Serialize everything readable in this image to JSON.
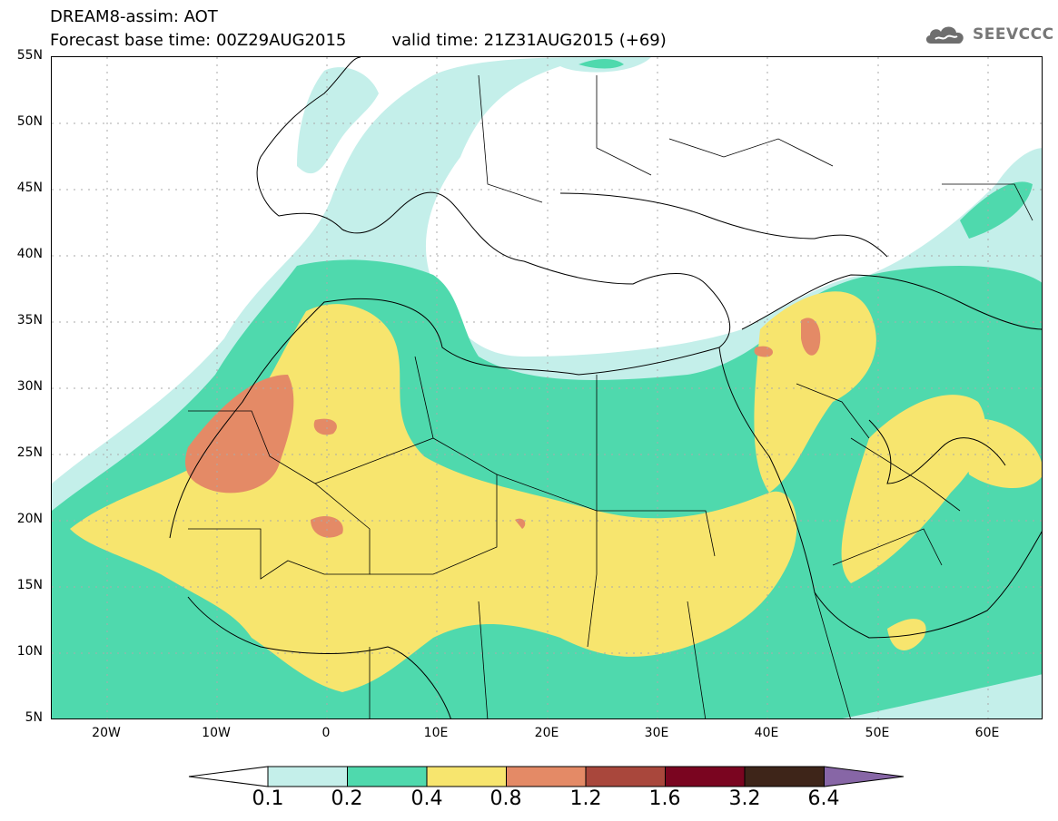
{
  "title": {
    "line1": "DREAM8-assim: AOT",
    "base_label": "Forecast base time: 00Z29AUG2015",
    "valid_label": "valid time: 21Z31AUG2015 (+69)"
  },
  "logo": {
    "text": "SEEVCCC",
    "icon": "cloud-logo-icon"
  },
  "map": {
    "lat_labels": [
      "55N",
      "50N",
      "45N",
      "40N",
      "35N",
      "30N",
      "25N",
      "20N",
      "15N",
      "10N",
      "5N"
    ],
    "lon_labels": [
      "20W",
      "10W",
      "0",
      "10E",
      "20E",
      "30E",
      "40E",
      "50E",
      "60E"
    ],
    "lat_range": [
      5,
      55
    ],
    "lon_range": [
      -25,
      65
    ]
  },
  "colorbar": {
    "levels": [
      "0.1",
      "0.2",
      "0.4",
      "0.8",
      "1.2",
      "1.6",
      "3.2",
      "6.4"
    ],
    "colors": [
      "#ffffff",
      "#c4efea",
      "#4fd9ad",
      "#f7e56e",
      "#e48a66",
      "#a9473c",
      "#7a0520",
      "#3e2519",
      "#8766a6"
    ]
  }
}
